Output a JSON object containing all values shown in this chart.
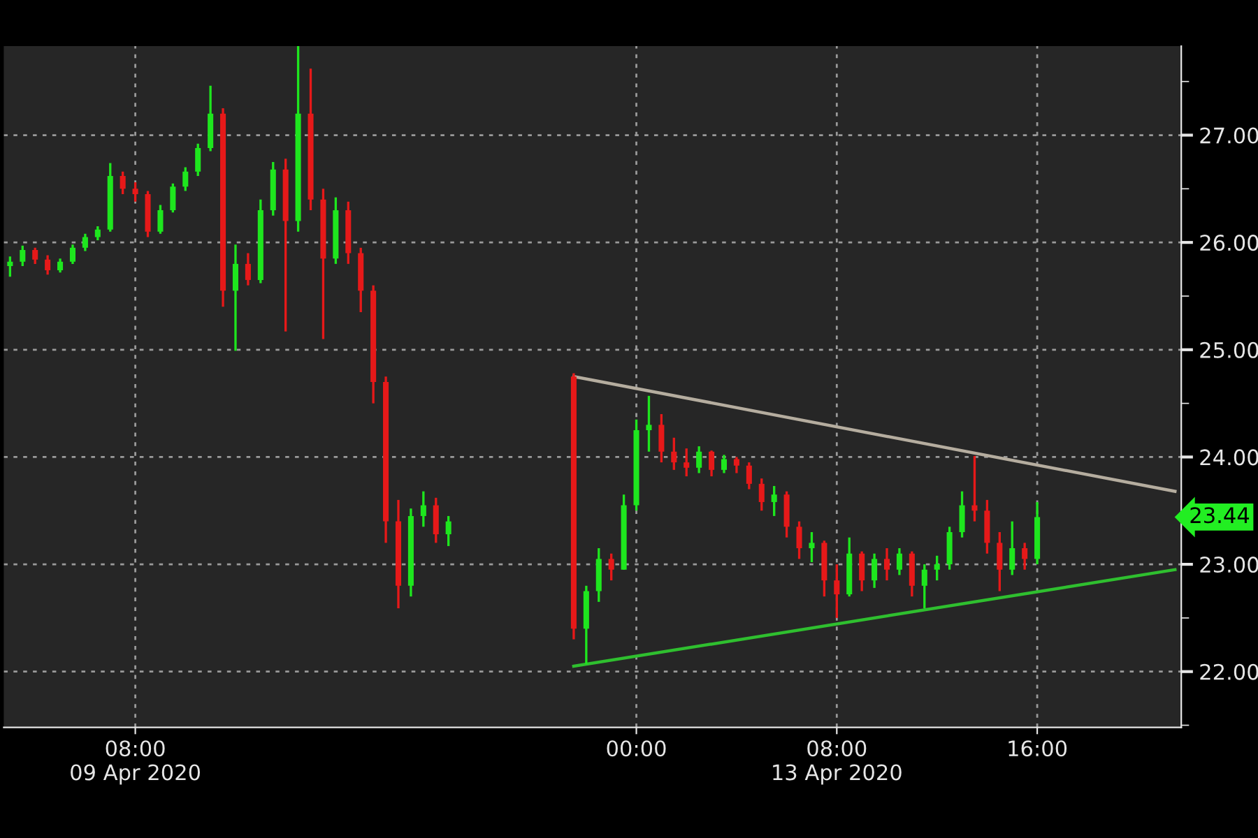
{
  "chart_data": {
    "type": "candlestick",
    "categories": [
      null,
      null,
      null,
      null,
      null,
      null,
      null,
      null,
      null,
      null,
      "08:00\n09 Apr 2020",
      null,
      null,
      null,
      null,
      null,
      null,
      null,
      null,
      null,
      null,
      null,
      null,
      null,
      null,
      null,
      null,
      null,
      null,
      null,
      null,
      null,
      null,
      null,
      null,
      null,
      null,
      null,
      null,
      null,
      null,
      null,
      null,
      null,
      null,
      null,
      null,
      null,
      null,
      null,
      "00:00",
      null,
      null,
      null,
      null,
      null,
      null,
      null,
      null,
      null,
      null,
      null,
      null,
      null,
      null,
      null,
      "08:00\n13 Apr 2020",
      null,
      null,
      null,
      null,
      null,
      null,
      null,
      null,
      null,
      null,
      null,
      null,
      null,
      null,
      null,
      "16:00",
      null,
      null,
      null,
      null,
      null,
      null,
      null,
      null,
      null,
      null,
      null
    ],
    "ohlc": [
      [
        25.78,
        25.87,
        25.68,
        25.82
      ],
      [
        25.82,
        25.97,
        25.78,
        25.93
      ],
      [
        25.93,
        25.95,
        25.8,
        25.84
      ],
      [
        25.84,
        25.88,
        25.7,
        25.74
      ],
      [
        25.74,
        25.85,
        25.72,
        25.82
      ],
      [
        25.82,
        25.98,
        25.8,
        25.95
      ],
      [
        25.95,
        26.08,
        25.92,
        26.05
      ],
      [
        26.05,
        26.15,
        26.02,
        26.12
      ],
      [
        26.12,
        26.74,
        26.1,
        26.62
      ],
      [
        26.62,
        26.66,
        26.45,
        26.5
      ],
      [
        26.5,
        26.56,
        26.38,
        26.45
      ],
      [
        26.45,
        26.48,
        26.05,
        26.1
      ],
      [
        26.1,
        26.35,
        26.08,
        26.3
      ],
      [
        26.3,
        26.55,
        26.28,
        26.52
      ],
      [
        26.52,
        26.7,
        26.48,
        26.66
      ],
      [
        26.66,
        26.92,
        26.62,
        26.88
      ],
      [
        26.88,
        27.46,
        26.85,
        27.2
      ],
      [
        27.2,
        27.25,
        25.4,
        25.55
      ],
      [
        25.55,
        25.98,
        24.99,
        25.8
      ],
      [
        25.8,
        25.9,
        25.6,
        25.65
      ],
      [
        25.65,
        26.4,
        25.62,
        26.3
      ],
      [
        26.3,
        26.75,
        26.25,
        26.68
      ],
      [
        26.68,
        26.78,
        25.17,
        26.2
      ],
      [
        26.2,
        27.85,
        26.1,
        27.2
      ],
      [
        27.2,
        27.62,
        26.3,
        26.4
      ],
      [
        26.4,
        26.5,
        25.1,
        25.85
      ],
      [
        25.85,
        26.42,
        25.8,
        26.3
      ],
      [
        26.3,
        26.38,
        25.8,
        25.9
      ],
      [
        25.9,
        25.95,
        25.35,
        25.55
      ],
      [
        25.55,
        25.6,
        24.5,
        24.7
      ],
      [
        24.7,
        24.75,
        23.2,
        23.4
      ],
      [
        23.4,
        23.6,
        22.59,
        22.8
      ],
      [
        22.8,
        23.52,
        22.7,
        23.45
      ],
      [
        23.45,
        23.68,
        23.35,
        23.55
      ],
      [
        23.55,
        23.62,
        23.2,
        23.28
      ],
      [
        23.28,
        23.45,
        23.17,
        23.4
      ],
      null,
      null,
      null,
      null,
      null,
      null,
      null,
      null,
      null,
      [
        24.75,
        24.78,
        22.3,
        22.4
      ],
      [
        22.4,
        22.8,
        22.07,
        22.75
      ],
      [
        22.75,
        23.15,
        22.65,
        23.05
      ],
      [
        23.05,
        23.1,
        22.85,
        22.95
      ],
      [
        22.95,
        23.65,
        22.95,
        23.55
      ],
      [
        23.55,
        24.35,
        23.5,
        24.25
      ],
      [
        24.25,
        24.57,
        24.05,
        24.3
      ],
      [
        24.3,
        24.4,
        23.95,
        24.05
      ],
      [
        24.05,
        24.18,
        23.88,
        23.95
      ],
      [
        23.95,
        24.08,
        23.82,
        23.9
      ],
      [
        23.9,
        24.1,
        23.85,
        24.05
      ],
      [
        24.05,
        24.06,
        23.82,
        23.88
      ],
      [
        23.88,
        24.02,
        23.85,
        23.98
      ],
      [
        23.98,
        24.0,
        23.85,
        23.92
      ],
      [
        23.92,
        23.95,
        23.7,
        23.75
      ],
      [
        23.75,
        23.8,
        23.5,
        23.58
      ],
      [
        23.58,
        23.73,
        23.45,
        23.65
      ],
      [
        23.65,
        23.68,
        23.25,
        23.35
      ],
      [
        23.35,
        23.4,
        23.05,
        23.15
      ],
      [
        23.15,
        23.3,
        23.02,
        23.2
      ],
      [
        23.2,
        23.22,
        22.7,
        22.85
      ],
      [
        22.85,
        23.0,
        22.5,
        22.72
      ],
      [
        22.72,
        23.25,
        22.7,
        23.1
      ],
      [
        23.1,
        23.12,
        22.75,
        22.85
      ],
      [
        22.85,
        23.1,
        22.78,
        23.05
      ],
      [
        23.05,
        23.15,
        22.85,
        22.95
      ],
      [
        22.95,
        23.15,
        22.9,
        23.1
      ],
      [
        23.1,
        23.12,
        22.7,
        22.8
      ],
      [
        22.8,
        23.0,
        22.59,
        22.95
      ],
      [
        22.95,
        23.08,
        22.85,
        23.0
      ],
      [
        23.0,
        23.35,
        22.95,
        23.3
      ],
      [
        23.3,
        23.68,
        23.25,
        23.55
      ],
      [
        23.55,
        24.01,
        23.4,
        23.5
      ],
      [
        23.5,
        23.6,
        23.1,
        23.2
      ],
      [
        23.2,
        23.3,
        22.75,
        22.95
      ],
      [
        22.95,
        23.4,
        22.9,
        23.15
      ],
      [
        23.15,
        23.2,
        22.95,
        23.05
      ],
      [
        23.05,
        23.58,
        23.0,
        23.44
      ],
      null,
      null,
      null,
      null,
      null,
      null,
      null,
      null,
      null,
      null,
      null
    ],
    "colors": [
      "#1ee61e",
      "#1ee61e",
      "#e61919",
      "#e61919",
      "#1ee61e",
      "#1ee61e",
      "#1ee61e",
      "#1ee61e",
      "#1ee61e",
      "#e61919",
      "#e61919",
      "#e61919",
      "#1ee61e",
      "#1ee61e",
      "#1ee61e",
      "#1ee61e",
      "#1ee61e",
      "#e61919",
      "#1ee61e",
      "#e61919",
      "#1ee61e",
      "#1ee61e",
      "#e61919",
      "#1ee61e",
      "#e61919",
      "#e61919",
      "#1ee61e",
      "#e61919",
      "#e61919",
      "#e61919",
      "#e61919",
      "#e61919",
      "#1ee61e",
      "#1ee61e",
      "#e61919",
      "#1ee61e",
      null,
      null,
      null,
      null,
      null,
      null,
      null,
      null,
      null,
      "#e61919",
      "#1ee61e",
      "#1ee61e",
      "#e61919",
      "#1ee61e",
      "#1ee61e",
      "#1ee61e",
      "#e61919",
      "#e61919",
      "#e61919",
      "#1ee61e",
      "#e61919",
      "#1ee61e",
      "#e61919",
      "#e61919",
      "#e61919",
      "#1ee61e",
      "#e61919",
      "#e61919",
      "#1ee61e",
      "#e61919",
      "#e61919",
      "#1ee61e",
      "#e61919",
      "#1ee61e",
      "#e61919",
      "#1ee61e",
      "#e61919",
      "#1ee61e",
      "#1ee61e",
      "#1ee61e",
      "#1ee61e",
      "#e61919",
      "#e61919",
      "#e61919",
      "#1ee61e",
      "#e61919",
      "#1ee61e",
      null,
      null,
      null,
      null,
      null,
      null,
      null,
      null,
      null,
      null,
      null
    ],
    "series": [
      {
        "type": "line",
        "color": "#b5ad9f",
        "values": [
          null,
          null,
          null,
          null,
          null,
          null,
          null,
          null,
          null,
          null,
          null,
          null,
          null,
          null,
          null,
          null,
          null,
          null,
          null,
          null,
          null,
          null,
          null,
          null,
          null,
          null,
          null,
          null,
          null,
          null,
          null,
          null,
          null,
          null,
          null,
          null,
          null,
          null,
          null,
          null,
          null,
          null,
          null,
          null,
          null,
          24.75,
          null,
          null,
          null,
          null,
          null,
          null,
          null,
          null,
          null,
          null,
          null,
          null,
          null,
          null,
          null,
          null,
          null,
          null,
          null,
          null,
          null,
          null,
          null,
          null,
          null,
          null,
          null,
          null,
          null,
          null,
          null,
          null,
          null,
          null,
          null,
          null,
          null,
          null,
          null,
          null,
          null,
          null,
          null,
          null,
          null,
          null,
          null,
          23.68
        ]
      },
      {
        "type": "line",
        "color": "#2fbf2f",
        "values": [
          null,
          null,
          null,
          null,
          null,
          null,
          null,
          null,
          null,
          null,
          null,
          null,
          null,
          null,
          null,
          null,
          null,
          null,
          null,
          null,
          null,
          null,
          null,
          null,
          null,
          null,
          null,
          null,
          null,
          null,
          null,
          null,
          null,
          null,
          null,
          null,
          null,
          null,
          null,
          null,
          null,
          null,
          null,
          null,
          null,
          22.05,
          null,
          null,
          null,
          null,
          null,
          null,
          null,
          null,
          null,
          null,
          null,
          null,
          null,
          null,
          null,
          null,
          null,
          null,
          null,
          null,
          null,
          null,
          null,
          null,
          null,
          null,
          null,
          null,
          null,
          null,
          null,
          null,
          null,
          null,
          null,
          null,
          null,
          null,
          null,
          null,
          null,
          null,
          null,
          null,
          null,
          null,
          null,
          22.95
        ]
      }
    ],
    "ylim": [
      21.48,
      27.83
    ],
    "yticks": [
      {
        "value": 21.5,
        "label": null
      },
      {
        "value": 22,
        "label": "22.00"
      },
      {
        "value": 22.5,
        "label": null
      },
      {
        "value": 23,
        "label": "23.00"
      },
      {
        "value": 23.5,
        "label": null
      },
      {
        "value": 24,
        "label": "24.00"
      },
      {
        "value": 24.5,
        "label": null
      },
      {
        "value": 25,
        "label": "25.00"
      },
      {
        "value": 25.5,
        "label": null
      },
      {
        "value": 26,
        "label": "26.00"
      },
      {
        "value": 26.5,
        "label": null
      },
      {
        "value": 27,
        "label": "27.00"
      },
      {
        "value": 27.5,
        "label": null
      }
    ],
    "grid": true,
    "annotations": [
      "23.44"
    ]
  }
}
